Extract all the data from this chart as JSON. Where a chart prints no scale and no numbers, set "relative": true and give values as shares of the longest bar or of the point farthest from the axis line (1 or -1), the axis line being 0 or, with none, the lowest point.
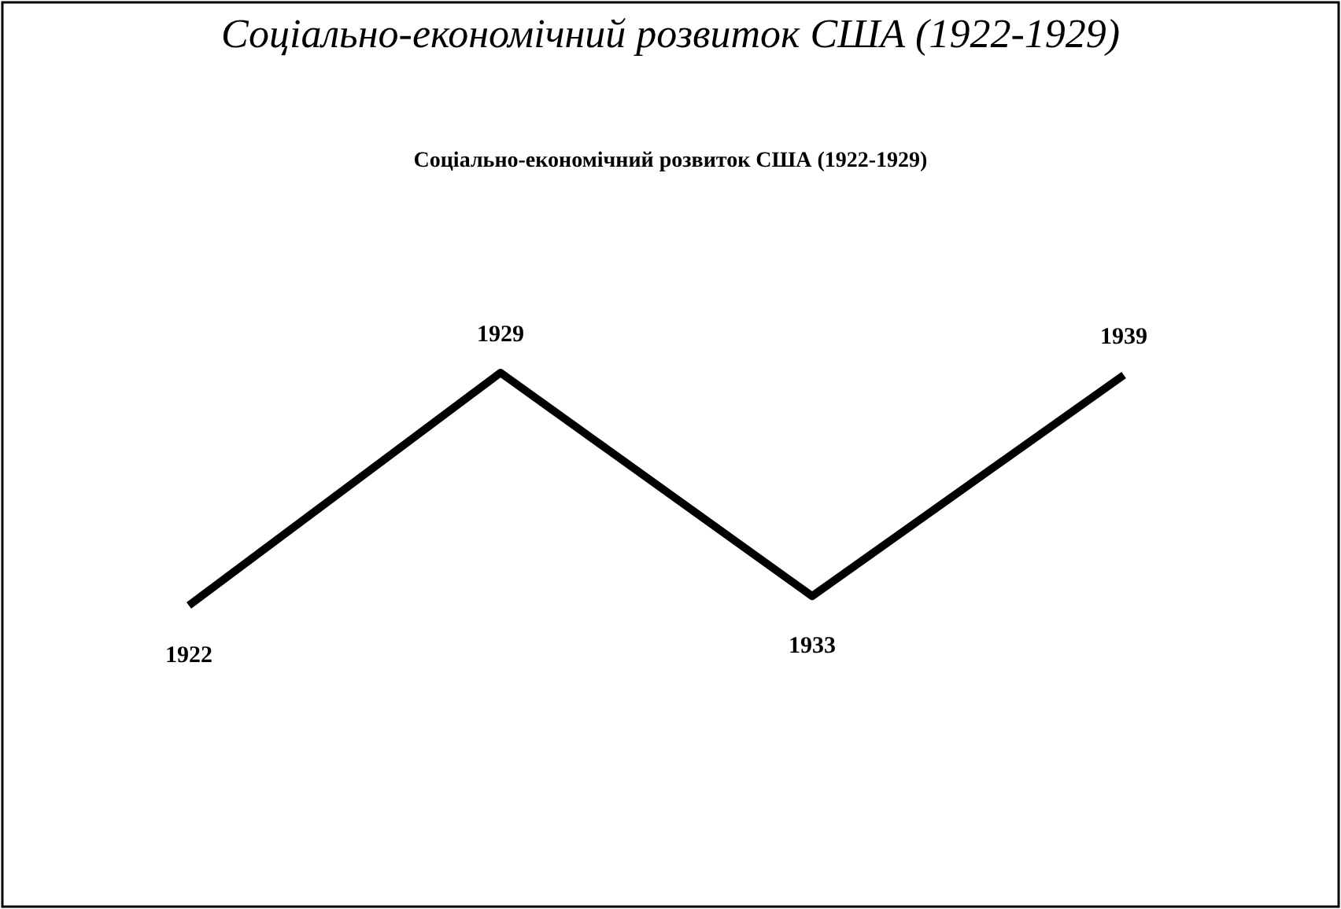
{
  "chart_data": {
    "type": "line",
    "title": "Соціально-економічний розвиток США (1922-1929)",
    "subtitle": "Соціально-економічний розвиток США (1922-1929)",
    "relative": true,
    "categories": [
      "1922",
      "1929",
      "1933",
      "1939"
    ],
    "series": [
      {
        "color": "#000000",
        "values": [
          0,
          1,
          0.04,
          0.99
        ]
      }
    ],
    "marker": "none",
    "line_style": "solid",
    "grid": false
  }
}
